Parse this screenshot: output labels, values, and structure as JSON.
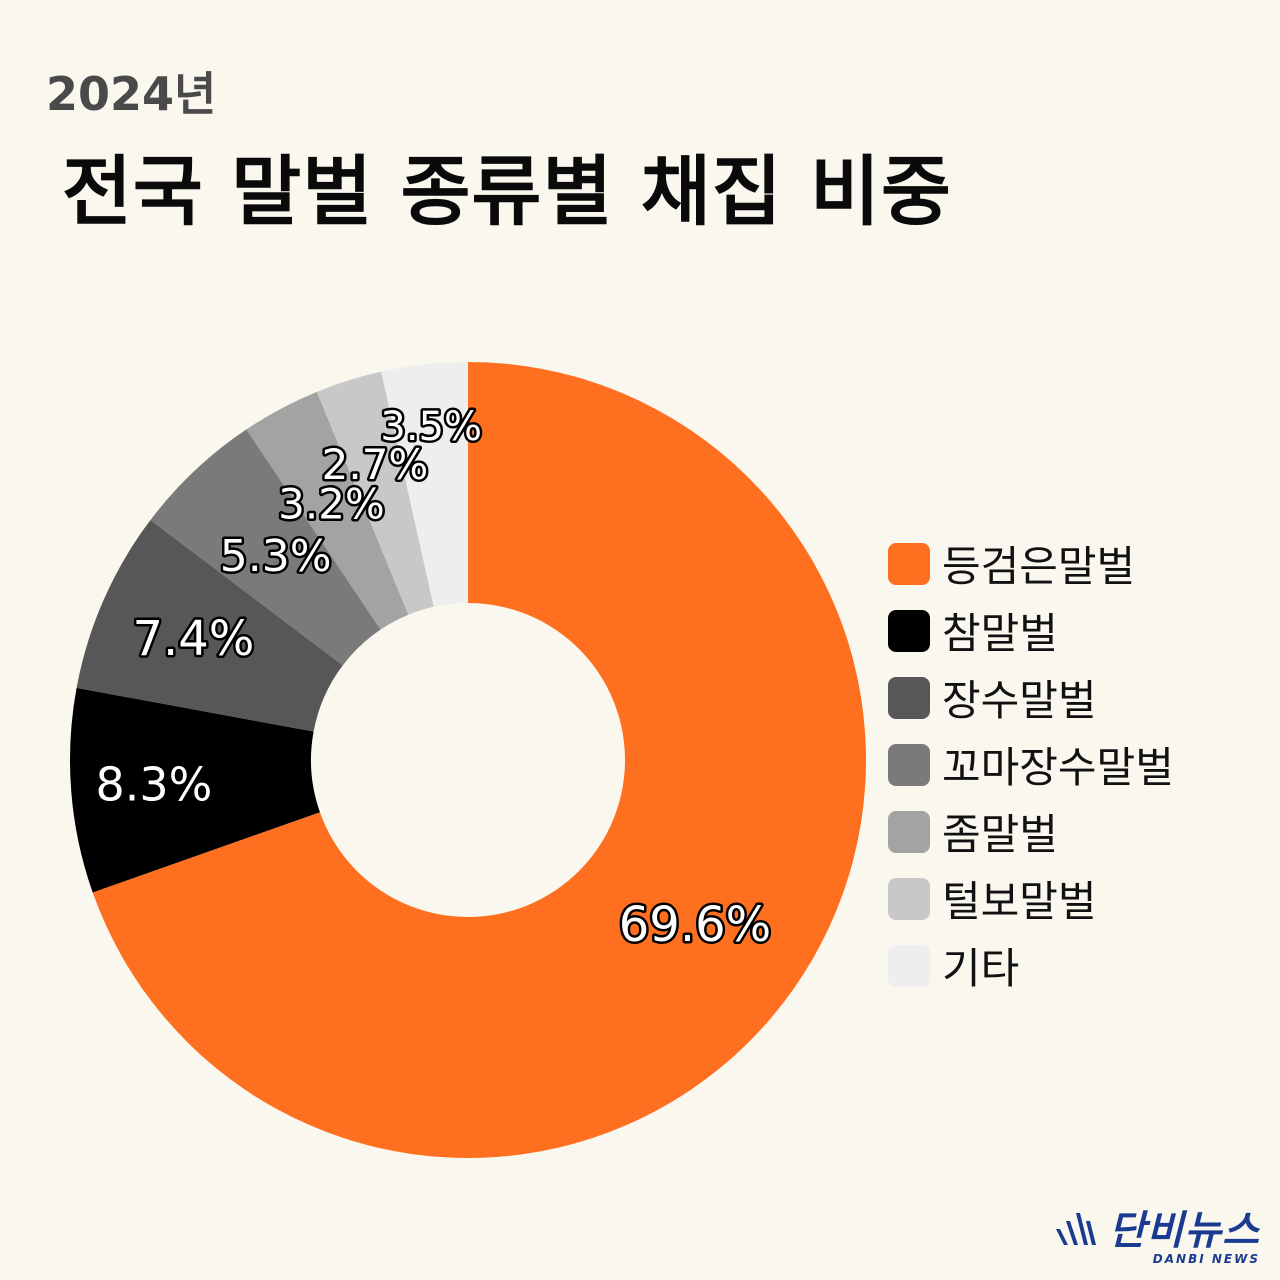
{
  "header": {
    "subtitle": "2024년",
    "title": "전국 말벌 종류별 채집 비중"
  },
  "chart_data": {
    "type": "pie",
    "donut": true,
    "title": "전국 말벌 종류별 채집 비중",
    "subtitle": "2024년",
    "legend_position": "right",
    "slices": [
      {
        "name": "등검은말벌",
        "value": 69.6,
        "label": "69.6%",
        "color": "#ff6f20"
      },
      {
        "name": "참말벌",
        "value": 8.3,
        "label": "8.3%",
        "color": "#000000"
      },
      {
        "name": "장수말벌",
        "value": 7.4,
        "label": "7.4%",
        "color": "#575757"
      },
      {
        "name": "꼬마장수말벌",
        "value": 5.3,
        "label": "5.3%",
        "color": "#7a7a7a"
      },
      {
        "name": "좀말벌",
        "value": 3.2,
        "label": "3.2%",
        "color": "#a3a3a3"
      },
      {
        "name": "털보말벌",
        "value": 2.7,
        "label": "2.7%",
        "color": "#c8c8c8"
      },
      {
        "name": "기타",
        "value": 3.5,
        "label": "3.5%",
        "color": "#eeeeee"
      }
    ]
  },
  "footer": {
    "brand": "단비뉴스",
    "brand_sub": "DANBI NEWS",
    "brand_color": "#1a3b8f"
  }
}
